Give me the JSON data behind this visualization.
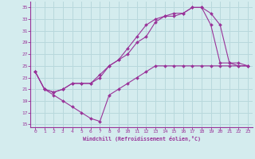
{
  "xlabel": "Windchill (Refroidissement éolien,°C)",
  "bg_color": "#d4ecee",
  "grid_color": "#b8d8dc",
  "line_color": "#993399",
  "xlim": [
    -0.5,
    23.5
  ],
  "ylim": [
    14.5,
    36.0
  ],
  "xticks": [
    0,
    1,
    2,
    3,
    4,
    5,
    6,
    7,
    8,
    9,
    10,
    11,
    12,
    13,
    14,
    15,
    16,
    17,
    18,
    19,
    20,
    21,
    22,
    23
  ],
  "yticks": [
    15,
    17,
    19,
    21,
    23,
    25,
    27,
    29,
    31,
    33,
    35
  ],
  "curve1_x": [
    0,
    1,
    2,
    3,
    4,
    5,
    6,
    7,
    8,
    9,
    10,
    11,
    12,
    13,
    14,
    15,
    16,
    17,
    18,
    19,
    20,
    21,
    22,
    23
  ],
  "curve1_y": [
    24,
    21,
    20,
    19,
    18,
    17,
    16,
    15.5,
    20,
    21,
    22,
    23,
    24,
    25,
    25,
    25,
    25,
    25,
    25,
    25,
    25,
    25,
    25,
    25
  ],
  "curve2_x": [
    0,
    1,
    2,
    3,
    4,
    5,
    6,
    7,
    8,
    9,
    10,
    11,
    12,
    13,
    14,
    15,
    16,
    17,
    18,
    19,
    20,
    21,
    22,
    23
  ],
  "curve2_y": [
    24,
    21,
    20.5,
    21,
    22,
    22,
    22,
    23,
    25,
    26,
    27,
    29,
    30,
    32.5,
    33.5,
    33.5,
    34,
    35,
    35,
    34,
    32,
    25.5,
    25.5,
    25
  ],
  "curve3_x": [
    0,
    1,
    2,
    3,
    4,
    5,
    6,
    7,
    8,
    9,
    10,
    11,
    12,
    13,
    14,
    15,
    16,
    17,
    18,
    19,
    20,
    21,
    22,
    23
  ],
  "curve3_y": [
    24,
    21,
    20.5,
    21,
    22,
    22,
    22,
    23.5,
    25,
    26,
    28,
    30,
    32,
    33,
    33.5,
    34,
    34,
    35,
    35,
    32,
    25.5,
    25.5,
    25,
    25
  ]
}
